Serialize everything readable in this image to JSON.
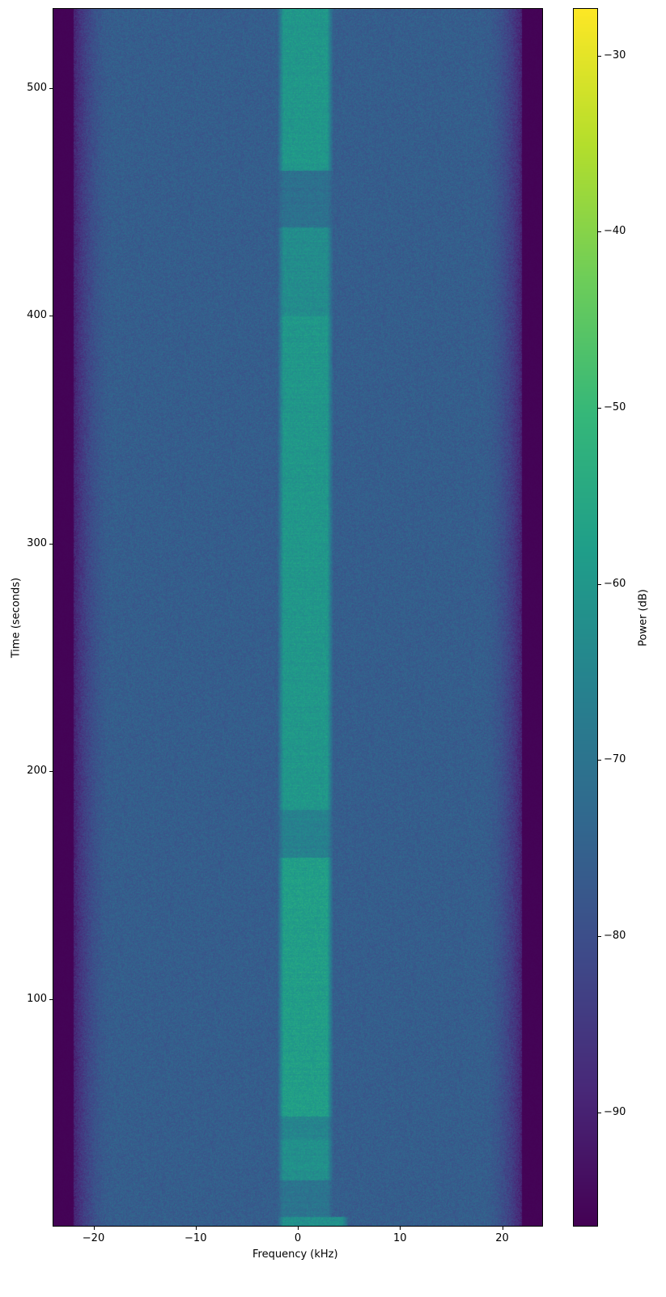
{
  "chart_data": {
    "type": "heatmap",
    "xlabel": "Frequency (kHz)",
    "ylabel": "Time (seconds)",
    "colorbar_label": "Power (dB)",
    "colormap": "viridis",
    "xlim": [
      -24,
      24
    ],
    "ylim": [
      0,
      535
    ],
    "clim": [
      -96.5,
      -27.3
    ],
    "xticks": [
      -20,
      -10,
      0,
      10,
      20
    ],
    "yticks": [
      100,
      200,
      300,
      400,
      500
    ],
    "cticks": [
      -30,
      -40,
      -50,
      -60,
      -70,
      -80,
      -90
    ],
    "background_power_db": -76,
    "band_edge_rolloff_khz": [
      18,
      22
    ],
    "edge_floor_db": -96,
    "signal_band_khz": [
      -2,
      3.5
    ],
    "signal_segments": [
      {
        "t": [
          464,
          535
        ],
        "power_db": -60
      },
      {
        "t": [
          439,
          464
        ],
        "power_db": -71
      },
      {
        "t": [
          400,
          439
        ],
        "power_db": -63
      },
      {
        "t": [
          183,
          400
        ],
        "power_db": -60
      },
      {
        "t": [
          162,
          183
        ],
        "power_db": -66
      },
      {
        "t": [
          48,
          162
        ],
        "power_db": -58
      },
      {
        "t": [
          38,
          48
        ],
        "power_db": -65
      },
      {
        "t": [
          20,
          38
        ],
        "power_db": -62
      },
      {
        "t": [
          4,
          20
        ],
        "power_db": -70
      },
      {
        "t": [
          0,
          4
        ],
        "power_db": -62
      }
    ]
  }
}
